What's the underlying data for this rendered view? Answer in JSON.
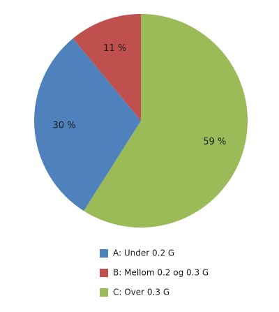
{
  "chart_data": {
    "type": "pie",
    "categories": [
      "A: Under 0.2 G",
      "B: Mellom 0.2 og 0.3 G",
      "C: Over 0.3 G"
    ],
    "values": [
      30,
      11,
      59
    ],
    "value_labels": [
      "30 %",
      "11 %",
      "59 %"
    ],
    "colors": [
      "#4f81bd",
      "#c0504d",
      "#9bbb59"
    ]
  }
}
